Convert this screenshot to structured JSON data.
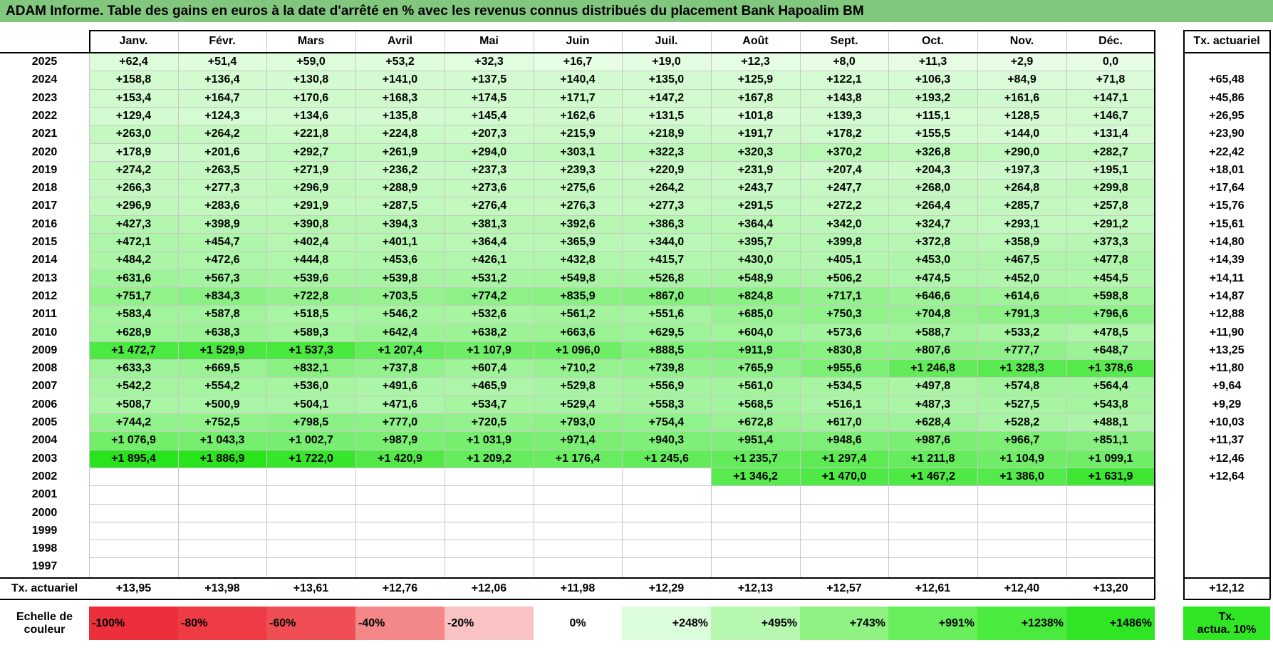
{
  "title": "ADAM Informe. Table des gains en euros à la date d'arrêté en % avec les revenus connus distribués du placement Bank Hapoalim BM",
  "header": {
    "months": [
      "Janv.",
      "Févr.",
      "Mars",
      "Avril",
      "Mai",
      "Juin",
      "Juil.",
      "Août",
      "Sept.",
      "Oct.",
      "Nov.",
      "Déc."
    ],
    "rate_label": "Tx. actuariel"
  },
  "rows": [
    {
      "year": "2025",
      "values": [
        "+62,4",
        "+51,4",
        "+59,0",
        "+53,2",
        "+32,3",
        "+16,7",
        "+19,0",
        "+12,3",
        "+8,0",
        "+11,3",
        "+2,9",
        "0,0"
      ],
      "rate": ""
    },
    {
      "year": "2024",
      "values": [
        "+158,8",
        "+136,4",
        "+130,8",
        "+141,0",
        "+137,5",
        "+140,4",
        "+135,0",
        "+125,9",
        "+122,1",
        "+106,3",
        "+84,9",
        "+71,8"
      ],
      "rate": "+65,48"
    },
    {
      "year": "2023",
      "values": [
        "+153,4",
        "+164,7",
        "+170,6",
        "+168,3",
        "+174,5",
        "+171,7",
        "+147,2",
        "+167,8",
        "+143,8",
        "+193,2",
        "+161,6",
        "+147,1"
      ],
      "rate": "+45,86"
    },
    {
      "year": "2022",
      "values": [
        "+129,4",
        "+124,3",
        "+134,6",
        "+135,8",
        "+145,4",
        "+162,6",
        "+131,5",
        "+101,8",
        "+139,3",
        "+115,1",
        "+128,5",
        "+146,7"
      ],
      "rate": "+26,95"
    },
    {
      "year": "2021",
      "values": [
        "+263,0",
        "+264,2",
        "+221,8",
        "+224,8",
        "+207,3",
        "+215,9",
        "+218,9",
        "+191,7",
        "+178,2",
        "+155,5",
        "+144,0",
        "+131,4"
      ],
      "rate": "+23,90"
    },
    {
      "year": "2020",
      "values": [
        "+178,9",
        "+201,6",
        "+292,7",
        "+261,9",
        "+294,0",
        "+303,1",
        "+322,3",
        "+320,3",
        "+370,2",
        "+326,8",
        "+290,0",
        "+282,7"
      ],
      "rate": "+22,42"
    },
    {
      "year": "2019",
      "values": [
        "+274,2",
        "+263,5",
        "+271,9",
        "+236,2",
        "+237,3",
        "+239,3",
        "+220,9",
        "+231,9",
        "+207,4",
        "+204,3",
        "+197,3",
        "+195,1"
      ],
      "rate": "+18,01"
    },
    {
      "year": "2018",
      "values": [
        "+266,3",
        "+277,3",
        "+296,9",
        "+288,9",
        "+273,6",
        "+275,6",
        "+264,2",
        "+243,7",
        "+247,7",
        "+268,0",
        "+264,8",
        "+299,8"
      ],
      "rate": "+17,64"
    },
    {
      "year": "2017",
      "values": [
        "+296,9",
        "+283,6",
        "+291,9",
        "+287,5",
        "+276,4",
        "+276,3",
        "+277,3",
        "+291,5",
        "+272,2",
        "+264,4",
        "+285,7",
        "+257,8"
      ],
      "rate": "+15,76"
    },
    {
      "year": "2016",
      "values": [
        "+427,3",
        "+398,9",
        "+390,8",
        "+394,3",
        "+381,3",
        "+392,6",
        "+386,3",
        "+364,4",
        "+342,0",
        "+324,7",
        "+293,1",
        "+291,2"
      ],
      "rate": "+15,61"
    },
    {
      "year": "2015",
      "values": [
        "+472,1",
        "+454,7",
        "+402,4",
        "+401,1",
        "+364,4",
        "+365,9",
        "+344,0",
        "+395,7",
        "+399,8",
        "+372,8",
        "+358,9",
        "+373,3"
      ],
      "rate": "+14,80"
    },
    {
      "year": "2014",
      "values": [
        "+484,2",
        "+472,6",
        "+444,8",
        "+453,6",
        "+426,1",
        "+432,8",
        "+415,7",
        "+430,0",
        "+405,1",
        "+453,0",
        "+467,5",
        "+477,8"
      ],
      "rate": "+14,39"
    },
    {
      "year": "2013",
      "values": [
        "+631,6",
        "+567,3",
        "+539,6",
        "+539,8",
        "+531,2",
        "+549,8",
        "+526,8",
        "+548,9",
        "+506,2",
        "+474,5",
        "+452,0",
        "+454,5"
      ],
      "rate": "+14,11"
    },
    {
      "year": "2012",
      "values": [
        "+751,7",
        "+834,3",
        "+722,8",
        "+703,5",
        "+774,2",
        "+835,9",
        "+867,0",
        "+824,8",
        "+717,1",
        "+646,6",
        "+614,6",
        "+598,8"
      ],
      "rate": "+14,87"
    },
    {
      "year": "2011",
      "values": [
        "+583,4",
        "+587,8",
        "+518,5",
        "+546,2",
        "+532,6",
        "+561,2",
        "+551,6",
        "+685,0",
        "+750,3",
        "+704,8",
        "+791,3",
        "+796,6"
      ],
      "rate": "+12,88"
    },
    {
      "year": "2010",
      "values": [
        "+628,9",
        "+638,3",
        "+589,3",
        "+642,4",
        "+638,2",
        "+663,6",
        "+629,5",
        "+604,0",
        "+573,6",
        "+588,7",
        "+533,2",
        "+478,5"
      ],
      "rate": "+11,90"
    },
    {
      "year": "2009",
      "values": [
        "+1 472,7",
        "+1 529,9",
        "+1 537,3",
        "+1 207,4",
        "+1 107,9",
        "+1 096,0",
        "+888,5",
        "+911,9",
        "+830,8",
        "+807,6",
        "+777,7",
        "+648,7"
      ],
      "rate": "+13,25"
    },
    {
      "year": "2008",
      "values": [
        "+633,3",
        "+669,5",
        "+832,1",
        "+737,8",
        "+607,4",
        "+710,2",
        "+739,8",
        "+765,9",
        "+955,6",
        "+1 246,8",
        "+1 328,3",
        "+1 378,6"
      ],
      "rate": "+11,80"
    },
    {
      "year": "2007",
      "values": [
        "+542,2",
        "+554,2",
        "+536,0",
        "+491,6",
        "+465,9",
        "+529,8",
        "+556,9",
        "+561,0",
        "+534,5",
        "+497,8",
        "+574,8",
        "+564,4"
      ],
      "rate": "+9,64"
    },
    {
      "year": "2006",
      "values": [
        "+508,7",
        "+500,9",
        "+504,1",
        "+471,6",
        "+534,7",
        "+529,4",
        "+558,3",
        "+568,5",
        "+516,1",
        "+487,3",
        "+527,5",
        "+543,8"
      ],
      "rate": "+9,29"
    },
    {
      "year": "2005",
      "values": [
        "+744,2",
        "+752,5",
        "+798,5",
        "+777,0",
        "+720,5",
        "+793,0",
        "+754,4",
        "+672,8",
        "+617,0",
        "+628,4",
        "+528,2",
        "+488,1"
      ],
      "rate": "+10,03"
    },
    {
      "year": "2004",
      "values": [
        "+1 076,9",
        "+1 043,3",
        "+1 002,7",
        "+987,9",
        "+1 031,9",
        "+971,4",
        "+940,3",
        "+951,4",
        "+948,6",
        "+987,6",
        "+966,7",
        "+851,1"
      ],
      "rate": "+11,37"
    },
    {
      "year": "2003",
      "values": [
        "+1 895,4",
        "+1 886,9",
        "+1 722,0",
        "+1 420,9",
        "+1 209,2",
        "+1 176,4",
        "+1 245,6",
        "+1 235,7",
        "+1 297,4",
        "+1 211,8",
        "+1 104,9",
        "+1 099,1"
      ],
      "rate": "+12,46"
    },
    {
      "year": "2002",
      "values": [
        "",
        "",
        "",
        "",
        "",
        "",
        "",
        "+1 346,2",
        "+1 470,0",
        "+1 467,2",
        "+1 386,0",
        "+1 631,9"
      ],
      "rate": "+12,64"
    },
    {
      "year": "2001",
      "values": [
        "",
        "",
        "",
        "",
        "",
        "",
        "",
        "",
        "",
        "",
        "",
        ""
      ],
      "rate": ""
    },
    {
      "year": "2000",
      "values": [
        "",
        "",
        "",
        "",
        "",
        "",
        "",
        "",
        "",
        "",
        "",
        ""
      ],
      "rate": ""
    },
    {
      "year": "1999",
      "values": [
        "",
        "",
        "",
        "",
        "",
        "",
        "",
        "",
        "",
        "",
        "",
        ""
      ],
      "rate": ""
    },
    {
      "year": "1998",
      "values": [
        "",
        "",
        "",
        "",
        "",
        "",
        "",
        "",
        "",
        "",
        "",
        ""
      ],
      "rate": ""
    },
    {
      "year": "1997",
      "values": [
        "",
        "",
        "",
        "",
        "",
        "",
        "",
        "",
        "",
        "",
        "",
        ""
      ],
      "rate": ""
    }
  ],
  "footer": {
    "label": "Tx. actuariel",
    "values": [
      "+13,95",
      "+13,98",
      "+13,61",
      "+12,76",
      "+12,06",
      "+11,98",
      "+12,29",
      "+12,13",
      "+12,57",
      "+12,61",
      "+12,40",
      "+13,20"
    ],
    "rate": "+12,12"
  },
  "scale": {
    "label_line1": "Echelle de",
    "label_line2": "couleur",
    "items": [
      {
        "text": "-100%",
        "color": "#ec2f3a",
        "align": "left"
      },
      {
        "text": "-80%",
        "color": "#ee3b44",
        "align": "left"
      },
      {
        "text": "-60%",
        "color": "#f04e55",
        "align": "left"
      },
      {
        "text": "-40%",
        "color": "#f48787",
        "align": "left"
      },
      {
        "text": "-20%",
        "color": "#f9c3c3",
        "align": "left"
      },
      {
        "text": "0%",
        "color": "#ffffff",
        "align": "center"
      },
      {
        "text": "+248%",
        "color": "#dcfddc",
        "align": "right"
      },
      {
        "text": "+495%",
        "color": "#b6f8b0",
        "align": "right"
      },
      {
        "text": "+743%",
        "color": "#8ff283",
        "align": "right"
      },
      {
        "text": "+991%",
        "color": "#69ee5b",
        "align": "right"
      },
      {
        "text": "+1238%",
        "color": "#4aea3e",
        "align": "right"
      },
      {
        "text": "+1486%",
        "color": "#2fe524",
        "align": "right"
      }
    ],
    "rate_line1": "Tx.",
    "rate_line2": "actua. 10%",
    "rate_color": "#2fe524"
  },
  "colors": {
    "title_bg": "#82c77e",
    "grid": "#c8c8c8"
  }
}
